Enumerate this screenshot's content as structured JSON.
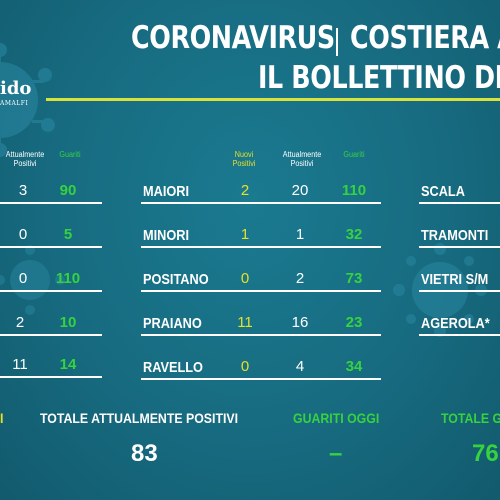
{
  "title": {
    "line1_left": "CORONAVIRUS",
    "line1_right": "COSTIERA A",
    "line2": "IL BOLLETTINO DE"
  },
  "logo": {
    "text": "ido",
    "sub": "AMALFI"
  },
  "left_table": {
    "headers": [
      "Attualmente Positivi",
      "Guariti"
    ],
    "rows": [
      {
        "attualmente": "3",
        "guariti": "90"
      },
      {
        "attualmente": "0",
        "guariti": "5"
      },
      {
        "attualmente": "0",
        "guariti": "110"
      },
      {
        "attualmente": "2",
        "guariti": "10"
      },
      {
        "attualmente": "11",
        "guariti": "14"
      }
    ]
  },
  "mid_table": {
    "headers": [
      "Nuovi Positivi",
      "Attualmente Positivi",
      "Guariti"
    ],
    "rows": [
      {
        "town": "MAIORI",
        "nuovi": "2",
        "attualmente": "20",
        "guariti": "110"
      },
      {
        "town": "MINORI",
        "nuovi": "1",
        "attualmente": "1",
        "guariti": "32"
      },
      {
        "town": "POSITANO",
        "nuovi": "0",
        "attualmente": "2",
        "guariti": "73"
      },
      {
        "town": "PRAIANO",
        "nuovi": "11",
        "attualmente": "16",
        "guariti": "23"
      },
      {
        "town": "RAVELLO",
        "nuovi": "0",
        "attualmente": "4",
        "guariti": "34"
      }
    ]
  },
  "right_table": {
    "towns": [
      "SCALA",
      "TRAMONTI",
      "VIETRI S/M",
      "AGEROLA*"
    ]
  },
  "footer": {
    "left_label": "I",
    "totale_attualmente_label": "TOTALE ATTUALMENTE POSITIVI",
    "totale_attualmente_value": "83",
    "guariti_oggi_label": "GUARITI OGGI",
    "guariti_oggi_value": "–",
    "totale_guariti_label": "TOTALE G",
    "totale_guariti_value": "76"
  },
  "colors": {
    "background": "#176b80",
    "yellow": "#e6e02a",
    "green": "#37d23f",
    "rule_accent": "#d8e23a"
  }
}
